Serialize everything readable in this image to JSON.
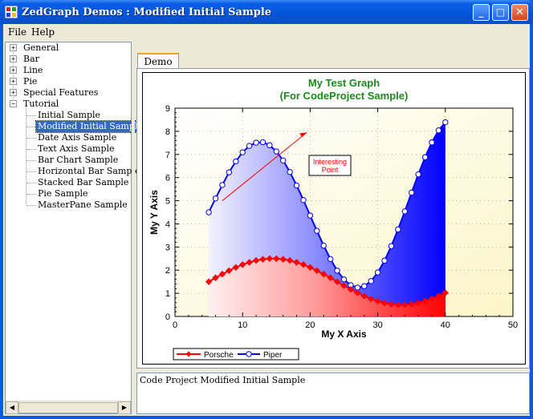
{
  "window": {
    "title": "ZedGraph Demos : Modified Initial Sample"
  },
  "titlebar_buttons": {
    "minimize": "_",
    "maximize": "□",
    "close": "✕"
  },
  "menu": [
    {
      "label": "File"
    },
    {
      "label": "Help"
    }
  ],
  "tree": {
    "top_level": [
      {
        "label": "General",
        "expander": "+"
      },
      {
        "label": "Bar",
        "expander": "+"
      },
      {
        "label": "Line",
        "expander": "+"
      },
      {
        "label": "Pie",
        "expander": "+"
      },
      {
        "label": "Special Features",
        "expander": "+"
      },
      {
        "label": "Tutorial",
        "expander": "−"
      }
    ],
    "children": [
      {
        "label": "Initial Sample",
        "selected": false
      },
      {
        "label": "Modified Initial Sample",
        "selected": true
      },
      {
        "label": "Date Axis Sample",
        "selected": false
      },
      {
        "label": "Text Axis Sample",
        "selected": false
      },
      {
        "label": "Bar Chart Sample",
        "selected": false
      },
      {
        "label": "Horizontal Bar Sample",
        "selected": false
      },
      {
        "label": "Stacked Bar Sample",
        "selected": false
      },
      {
        "label": "Pie Sample",
        "selected": false
      },
      {
        "label": "MasterPane Sample",
        "selected": false
      }
    ]
  },
  "scrollbar": {
    "left_arrow": "◀",
    "right_arrow": "▶"
  },
  "tabs": [
    {
      "label": "Demo"
    }
  ],
  "description": "Code Project Modified Initial Sample",
  "chart_data": {
    "type": "area",
    "title": "My Test Graph",
    "subtitle": "(For CodeProject Sample)",
    "xlabel": "My X Axis",
    "ylabel": "My Y Axis",
    "xlim": [
      0,
      50
    ],
    "ylim": [
      0,
      9
    ],
    "x_ticks": [
      "0",
      "10",
      "20",
      "30",
      "40",
      "50"
    ],
    "y_ticks": [
      "0",
      "1",
      "2",
      "3",
      "4",
      "5",
      "6",
      "7",
      "8",
      "9"
    ],
    "grid": true,
    "legend_position": "bottom",
    "series": [
      {
        "name": "Porsche",
        "color": "#ff0000",
        "marker": "diamond",
        "x": [
          5,
          6,
          7,
          8,
          9,
          10,
          11,
          12,
          13,
          14,
          15,
          16,
          17,
          18,
          19,
          20,
          21,
          22,
          23,
          24,
          25,
          26,
          27,
          28,
          29,
          30,
          31,
          32,
          33,
          34,
          35,
          36,
          37,
          38,
          39,
          40
        ],
        "y": [
          1.5,
          1.67,
          1.83,
          1.98,
          2.12,
          2.24,
          2.34,
          2.42,
          2.47,
          2.5,
          2.5,
          2.47,
          2.42,
          2.34,
          2.24,
          2.12,
          1.98,
          1.83,
          1.67,
          1.5,
          1.33,
          1.17,
          1.02,
          0.88,
          0.76,
          0.66,
          0.58,
          0.53,
          0.5,
          0.5,
          0.53,
          0.58,
          0.66,
          0.76,
          0.88,
          1.02
        ]
      },
      {
        "name": "Piper",
        "color": "#0000ff",
        "marker": "circle",
        "x": [
          5,
          6,
          7,
          8,
          9,
          10,
          11,
          12,
          13,
          14,
          15,
          16,
          17,
          18,
          19,
          20,
          21,
          22,
          23,
          24,
          25,
          26,
          27,
          28,
          29,
          30,
          31,
          32,
          33,
          34,
          35,
          36,
          37,
          38,
          39,
          40
        ],
        "y": [
          4.5,
          5.1,
          5.68,
          6.23,
          6.7,
          7.09,
          7.37,
          7.51,
          7.53,
          7.4,
          7.13,
          6.74,
          6.24,
          5.66,
          5.03,
          4.36,
          3.7,
          3.06,
          2.48,
          1.98,
          1.6,
          1.35,
          1.25,
          1.31,
          1.53,
          1.9,
          2.41,
          3.04,
          3.76,
          4.54,
          5.35,
          6.14,
          6.88,
          7.52,
          8.04,
          8.39
        ]
      }
    ],
    "annotation": {
      "lines": [
        "Interesting",
        "Point"
      ],
      "color": "#ff0000"
    }
  }
}
